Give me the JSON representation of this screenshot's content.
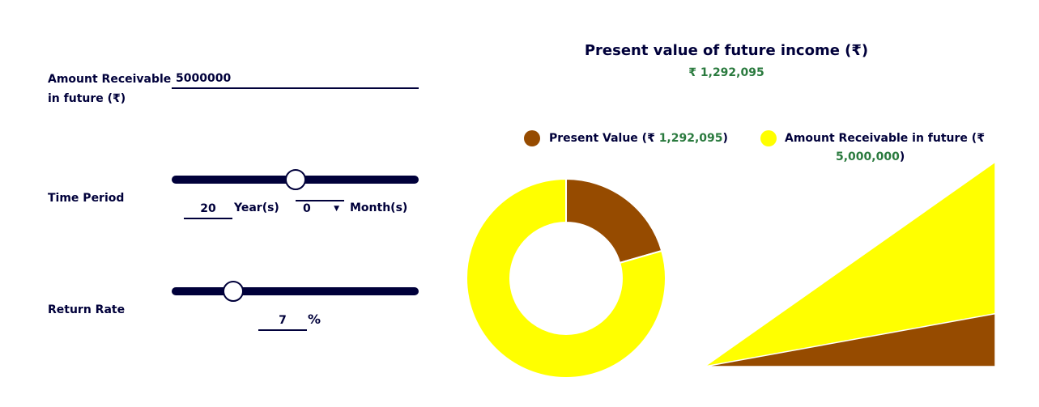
{
  "inputs": {
    "amount_label_line1": "Amount Receivable",
    "amount_label_line2": "in future (₹)",
    "amount_value": "5000000",
    "time_label": "Time Period",
    "years_value": "20",
    "years_unit": "Year(s)",
    "months_value": "0",
    "months_unit": "Month(s)",
    "time_slider_fraction": 0.5,
    "return_label": "Return Rate",
    "rate_value": "7",
    "rate_unit": "%",
    "rate_slider_fraction": 0.25
  },
  "result": {
    "title": "Present value of future income (₹)",
    "value": "₹ 1,292,095"
  },
  "legend": {
    "pv_prefix": "Present Value (₹ ",
    "pv_value": "1,292,095",
    "pv_suffix": ")",
    "future_prefix": "Amount Receivable in future (₹",
    "future_value": "5,000,000",
    "future_suffix": ")"
  },
  "colors": {
    "present_value": "#964B00",
    "future_amount": "#FFFF00",
    "navy": "#00003A",
    "green": "#2A7A3E"
  },
  "chart_data": {
    "type": "pie",
    "series": [
      {
        "name": "Present Value",
        "value": 1292095
      },
      {
        "name": "Amount Receivable in future",
        "value": 5000000
      }
    ]
  }
}
